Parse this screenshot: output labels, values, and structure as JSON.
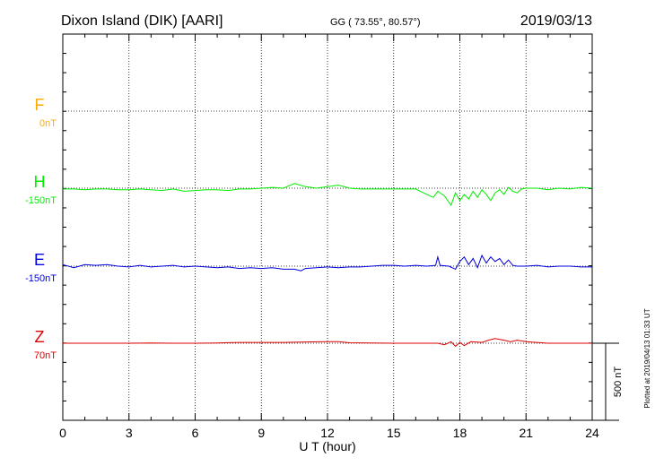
{
  "header": {
    "station": "Dixon Island (DIK)  [AARI]",
    "coords": "GG ( 73.55°,  80.57°)",
    "date": "2019/03/13"
  },
  "plotted_note": "Plotted at 2019/04/13 01:33 UT",
  "scale_label": "500 nT",
  "colors": {
    "F": "#ffaa00",
    "H": "#00ee00",
    "E": "#0000dd",
    "Z": "#dd0000",
    "axis": "#000000"
  },
  "chart_data": {
    "type": "line",
    "xlabel": "U T (hour)",
    "xlim": [
      0,
      24
    ],
    "xticks": [
      0,
      3,
      6,
      9,
      12,
      15,
      18,
      21,
      24
    ],
    "grid": true,
    "scale_bar_nT": 500,
    "series": [
      {
        "name": "F",
        "baseline": "0nT",
        "points": []
      },
      {
        "name": "H",
        "baseline": "-150nT",
        "points": [
          [
            0,
            -5
          ],
          [
            0.5,
            -5
          ],
          [
            1,
            -10
          ],
          [
            1.5,
            -5
          ],
          [
            2,
            -5
          ],
          [
            2.5,
            -10
          ],
          [
            3,
            -10
          ],
          [
            3.5,
            -5
          ],
          [
            4,
            -10
          ],
          [
            4.5,
            -15
          ],
          [
            5,
            -5
          ],
          [
            5.5,
            -20
          ],
          [
            6,
            -15
          ],
          [
            6.5,
            -10
          ],
          [
            7,
            -10
          ],
          [
            7.5,
            -15
          ],
          [
            8,
            -5
          ],
          [
            8.5,
            -5
          ],
          [
            9,
            0
          ],
          [
            9.5,
            5
          ],
          [
            10,
            0
          ],
          [
            10.5,
            30
          ],
          [
            11,
            10
          ],
          [
            11.5,
            0
          ],
          [
            12,
            10
          ],
          [
            12.5,
            20
          ],
          [
            13,
            0
          ],
          [
            13.5,
            -5
          ],
          [
            14,
            -5
          ],
          [
            14.5,
            -5
          ],
          [
            15,
            -5
          ],
          [
            15.5,
            -5
          ],
          [
            16,
            -5
          ],
          [
            16.5,
            -40
          ],
          [
            16.8,
            -60
          ],
          [
            17,
            -20
          ],
          [
            17.3,
            -50
          ],
          [
            17.6,
            -110
          ],
          [
            17.8,
            -30
          ],
          [
            18,
            -80
          ],
          [
            18.2,
            -40
          ],
          [
            18.4,
            -70
          ],
          [
            18.6,
            -20
          ],
          [
            18.8,
            -60
          ],
          [
            19,
            -10
          ],
          [
            19.2,
            -40
          ],
          [
            19.4,
            -80
          ],
          [
            19.6,
            -30
          ],
          [
            19.8,
            -10
          ],
          [
            20,
            -40
          ],
          [
            20.2,
            5
          ],
          [
            20.4,
            -20
          ],
          [
            20.6,
            -30
          ],
          [
            20.8,
            -5
          ],
          [
            21,
            0
          ],
          [
            21.5,
            0
          ],
          [
            22,
            -10
          ],
          [
            22.5,
            0
          ],
          [
            23,
            -5
          ],
          [
            23.5,
            5
          ],
          [
            24,
            0
          ]
        ]
      },
      {
        "name": "E",
        "baseline": "-150nT",
        "points": [
          [
            0,
            10
          ],
          [
            0.5,
            -10
          ],
          [
            1,
            10
          ],
          [
            1.5,
            5
          ],
          [
            2,
            10
          ],
          [
            2.5,
            0
          ],
          [
            3,
            -5
          ],
          [
            3.5,
            5
          ],
          [
            4,
            -5
          ],
          [
            4.5,
            0
          ],
          [
            5,
            5
          ],
          [
            5.5,
            -5
          ],
          [
            6,
            0
          ],
          [
            6.5,
            -5
          ],
          [
            7,
            -10
          ],
          [
            7.5,
            -5
          ],
          [
            8,
            -15
          ],
          [
            8.5,
            -10
          ],
          [
            9,
            -15
          ],
          [
            9.5,
            -10
          ],
          [
            10,
            -20
          ],
          [
            10.5,
            -20
          ],
          [
            10.8,
            -30
          ],
          [
            11,
            -15
          ],
          [
            11.5,
            -10
          ],
          [
            12,
            -5
          ],
          [
            12.5,
            -10
          ],
          [
            13,
            -5
          ],
          [
            13.5,
            -5
          ],
          [
            14,
            0
          ],
          [
            14.5,
            5
          ],
          [
            15,
            5
          ],
          [
            15.5,
            0
          ],
          [
            16,
            5
          ],
          [
            16.5,
            0
          ],
          [
            16.9,
            5
          ],
          [
            17,
            60
          ],
          [
            17.1,
            5
          ],
          [
            17.5,
            0
          ],
          [
            17.8,
            -20
          ],
          [
            18,
            30
          ],
          [
            18.2,
            60
          ],
          [
            18.4,
            10
          ],
          [
            18.6,
            50
          ],
          [
            18.8,
            -10
          ],
          [
            19,
            70
          ],
          [
            19.2,
            20
          ],
          [
            19.4,
            60
          ],
          [
            19.6,
            30
          ],
          [
            19.8,
            50
          ],
          [
            20,
            10
          ],
          [
            20.2,
            40
          ],
          [
            20.4,
            5
          ],
          [
            20.6,
            0
          ],
          [
            21,
            0
          ],
          [
            21.5,
            5
          ],
          [
            22,
            -5
          ],
          [
            22.5,
            0
          ],
          [
            23,
            0
          ],
          [
            23.5,
            -5
          ],
          [
            24,
            -5
          ]
        ]
      },
      {
        "name": "Z",
        "baseline": "70nT",
        "points": [
          [
            0,
            0
          ],
          [
            1,
            0
          ],
          [
            2,
            0
          ],
          [
            3,
            0
          ],
          [
            4,
            2
          ],
          [
            5,
            0
          ],
          [
            6,
            0
          ],
          [
            7,
            2
          ],
          [
            8,
            5
          ],
          [
            9,
            5
          ],
          [
            10,
            5
          ],
          [
            11,
            8
          ],
          [
            12,
            10
          ],
          [
            12.5,
            10
          ],
          [
            13,
            3
          ],
          [
            14,
            2
          ],
          [
            15,
            0
          ],
          [
            16,
            0
          ],
          [
            17,
            0
          ],
          [
            17.3,
            -10
          ],
          [
            17.6,
            10
          ],
          [
            17.8,
            -20
          ],
          [
            18,
            5
          ],
          [
            18.2,
            -15
          ],
          [
            18.5,
            10
          ],
          [
            19,
            5
          ],
          [
            19.3,
            20
          ],
          [
            19.6,
            30
          ],
          [
            20,
            20
          ],
          [
            20.3,
            10
          ],
          [
            20.6,
            20
          ],
          [
            21,
            10
          ],
          [
            21.5,
            5
          ],
          [
            22,
            0
          ],
          [
            23,
            0
          ],
          [
            24,
            0
          ]
        ]
      }
    ]
  }
}
